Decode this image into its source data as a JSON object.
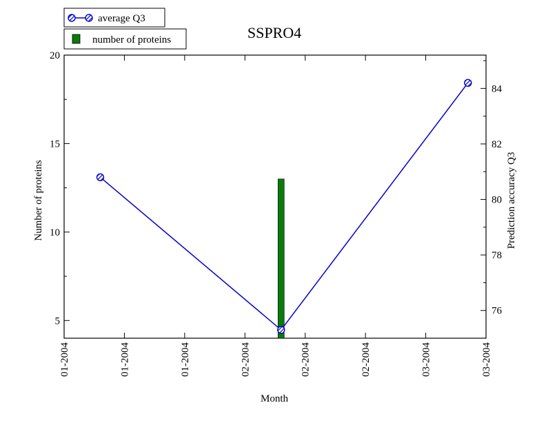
{
  "chart_data": {
    "type": "bar+line",
    "title": "SSPRO4",
    "xlabel": "Month",
    "ylabel_left": "Number of proteins",
    "ylabel_right": "Prediction accuracy Q3",
    "x_tick_labels": [
      "01-2004",
      "01-2004",
      "01-2004",
      "02-2004",
      "02-2004",
      "02-2004",
      "03-2004",
      "03-2004"
    ],
    "xlim": [
      0,
      7
    ],
    "ylim_left": [
      4,
      20
    ],
    "ylim_right": [
      75,
      85.2
    ],
    "y_left_ticks": [
      5,
      10,
      15,
      20
    ],
    "y_right_ticks": [
      76,
      78,
      80,
      82,
      84
    ],
    "grid": false,
    "legend_position": "top-left, outside plot",
    "series": [
      {
        "name": "average Q3",
        "kind": "line",
        "axis": "right",
        "color": "#0000cc",
        "x": [
          0.6,
          3.6,
          6.7
        ],
        "y": [
          80.8,
          75.3,
          84.2
        ]
      },
      {
        "name": "number of proteins",
        "kind": "bar",
        "axis": "left",
        "color": "#0a7a0a",
        "x": [
          3.6
        ],
        "y": [
          13
        ]
      }
    ]
  }
}
